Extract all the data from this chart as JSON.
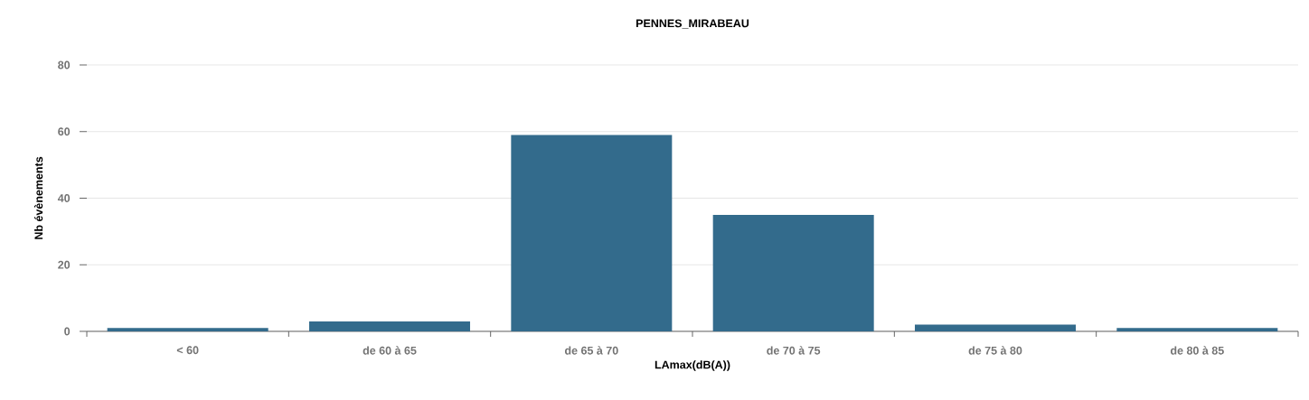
{
  "chart_data": {
    "type": "bar",
    "title": "PENNES_MIRABEAU",
    "xlabel": "LAmax(dB(A))",
    "ylabel": "Nb évènements",
    "categories": [
      "< 60",
      "de 60 à 65",
      "de 65 à 70",
      "de 70 à 75",
      "de 75 à 80",
      "de 80 à 85"
    ],
    "values": [
      1,
      3,
      59,
      35,
      2,
      1
    ],
    "color": "#336b8c",
    "ylim": [
      0,
      80
    ],
    "yticks": [
      0,
      20,
      40,
      60,
      80
    ],
    "grid": "y"
  }
}
